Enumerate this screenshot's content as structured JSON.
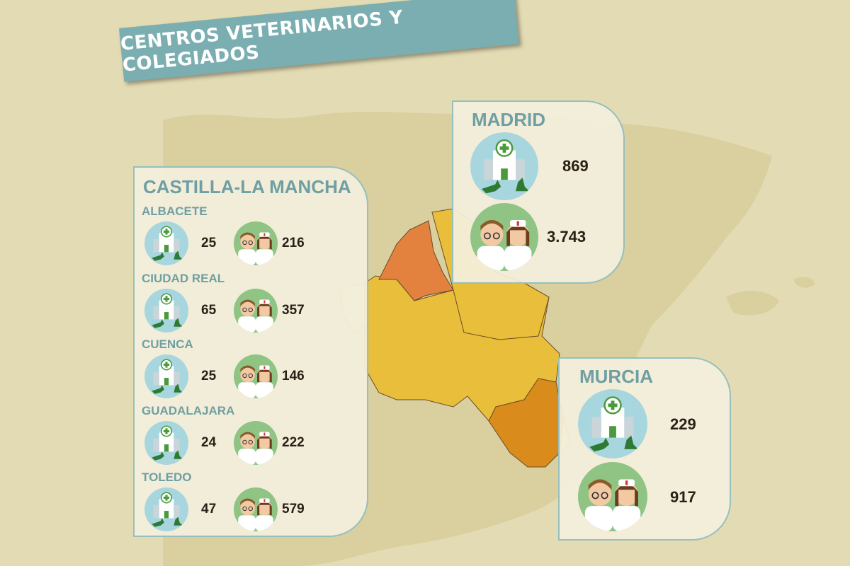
{
  "title": "CENTROS VETERINARIOS Y COLEGIADOS",
  "colors": {
    "background": "#e3dbb3",
    "land": "#d9cf9f",
    "panel_border": "#97bfbd",
    "heading": "#6f9fa3",
    "ribbon": "#7aaeb1",
    "clinic_circle": "#a8d6df",
    "vets_circle": "#8fc485",
    "region_castilla": "#e9be3a",
    "region_madrid_province": "#e3823f",
    "region_murcia": "#d98c1c",
    "region_neighbor": "#f0d99c"
  },
  "icons": {
    "clinic": "veterinary-clinic-icon",
    "vets": "veterinarians-icon"
  },
  "castilla": {
    "title": "CASTILLA-LA MANCHA",
    "provinces": [
      {
        "name": "ALBACETE",
        "centros": "25",
        "colegiados": "216"
      },
      {
        "name": "CIUDAD REAL",
        "centros": "65",
        "colegiados": "357"
      },
      {
        "name": "CUENCA",
        "centros": "25",
        "colegiados": "146"
      },
      {
        "name": "GUADALAJARA",
        "centros": "24",
        "colegiados": "222"
      },
      {
        "name": "TOLEDO",
        "centros": "47",
        "colegiados": "579"
      }
    ]
  },
  "madrid": {
    "title": "MADRID",
    "centros": "869",
    "colegiados": "3.743"
  },
  "murcia": {
    "title": "MURCIA",
    "centros": "229",
    "colegiados": "917"
  }
}
